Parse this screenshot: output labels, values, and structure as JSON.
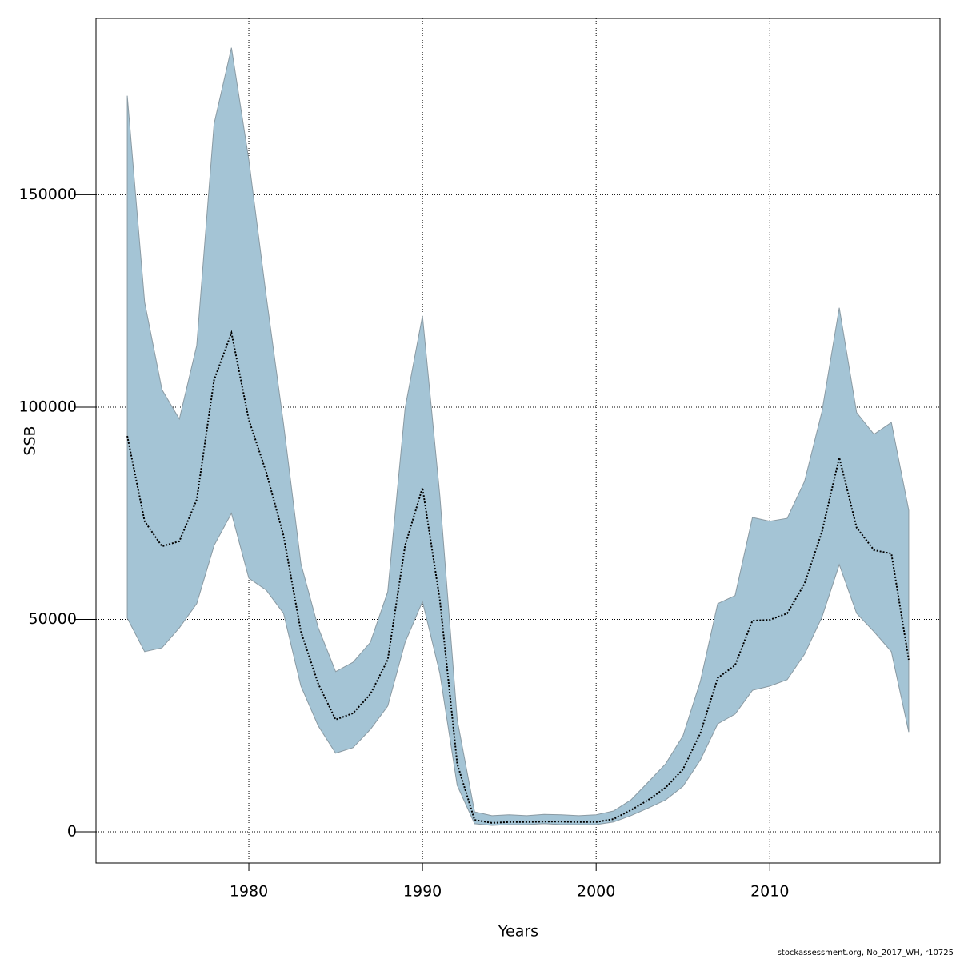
{
  "chart_data": {
    "type": "band-line",
    "x_label": "Years",
    "y_label": "SSB",
    "footnote": "stockassessment.org, No_2017_WH, r10725",
    "x": [
      1973,
      1974,
      1975,
      1976,
      1977,
      1978,
      1979,
      1980,
      1981,
      1982,
      1983,
      1984,
      1985,
      1986,
      1987,
      1988,
      1989,
      1990,
      1991,
      1992,
      1993,
      1994,
      1995,
      1996,
      1997,
      1998,
      1999,
      2000,
      2001,
      2002,
      2003,
      2004,
      2005,
      2006,
      2007,
      2008,
      2009,
      2010,
      2011,
      2012,
      2013,
      2014,
      2015,
      2016,
      2017,
      2018
    ],
    "values": [
      93200,
      73100,
      67200,
      68400,
      78200,
      106400,
      117500,
      97000,
      84700,
      69700,
      47100,
      34800,
      26400,
      27900,
      32400,
      40500,
      67400,
      81000,
      54600,
      16000,
      2800,
      2100,
      2300,
      2300,
      2400,
      2400,
      2300,
      2300,
      3000,
      5100,
      7500,
      10400,
      14700,
      23200,
      36200,
      39200,
      49700,
      49900,
      51400,
      58400,
      70600,
      88100,
      71600,
      66300,
      65500,
      40500
    ],
    "lower": [
      50300,
      42400,
      43300,
      48000,
      53700,
      67400,
      75000,
      59700,
      56900,
      51400,
      34300,
      24900,
      18500,
      19800,
      24100,
      29600,
      44600,
      54200,
      37300,
      10900,
      1900,
      1500,
      1700,
      1700,
      1900,
      1700,
      1700,
      1700,
      2300,
      3800,
      5600,
      7500,
      10700,
      16900,
      25400,
      27700,
      33300,
      34300,
      35800,
      41800,
      50500,
      62900,
      51400,
      47100,
      42400,
      23500
    ],
    "upper": [
      173300,
      124700,
      104100,
      97200,
      114500,
      166700,
      184600,
      158200,
      126200,
      96000,
      63100,
      48000,
      37700,
      39900,
      44600,
      56500,
      99800,
      121500,
      79100,
      26400,
      4700,
      3800,
      4000,
      3800,
      4100,
      4000,
      3800,
      4000,
      4900,
      7500,
      11700,
      16000,
      22600,
      35400,
      53700,
      55600,
      74000,
      73100,
      73800,
      82500,
      98900,
      123400,
      98700,
      93600,
      96400,
      75700
    ],
    "line_color": "#000000",
    "band_color": "#a4c4d5",
    "band_edge_color": "#8a9aa3",
    "xlim": [
      1971.2,
      2019.8
    ],
    "ylim": [
      -7340,
      191500
    ],
    "xticks": [
      1980,
      1990,
      2000,
      2010
    ],
    "yticks": [
      0,
      50000,
      100000,
      150000
    ],
    "grid": true
  }
}
